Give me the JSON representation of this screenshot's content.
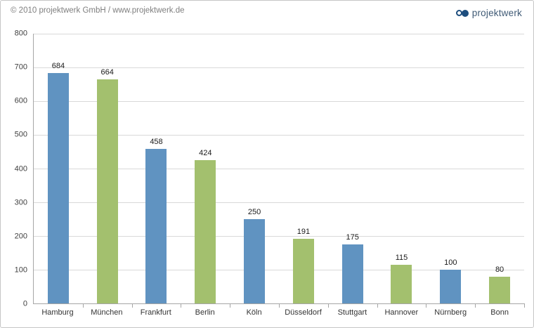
{
  "header": {
    "copyright": "© 2010 projektwerk GmbH / www.projektwerk.de",
    "logo_text": "projektwerk"
  },
  "colors": {
    "bar_blue": "#6093c1",
    "bar_green": "#a3c06e",
    "gridline": "#d9d9d9",
    "axis": "#a6a6a6",
    "logo_navy": "#1d4e7e",
    "logo_text": "#3f5a75",
    "copyright_gray": "#7f7f7f"
  },
  "chart_data": {
    "type": "bar",
    "categories": [
      "Hamburg",
      "München",
      "Frankfurt",
      "Berlin",
      "Köln",
      "Düsseldorf",
      "Stuttgart",
      "Hannover",
      "Nürnberg",
      "Bonn"
    ],
    "values": [
      684,
      664,
      458,
      424,
      250,
      191,
      175,
      115,
      100,
      80
    ],
    "bar_colors": [
      "#6093c1",
      "#a3c06e",
      "#6093c1",
      "#a3c06e",
      "#6093c1",
      "#a3c06e",
      "#6093c1",
      "#a3c06e",
      "#6093c1",
      "#a3c06e"
    ],
    "title": "",
    "xlabel": "",
    "ylabel": "",
    "ylim": [
      0,
      800
    ],
    "ytick_step": 100,
    "grid": true,
    "legend_position": "none",
    "value_labels": true
  }
}
